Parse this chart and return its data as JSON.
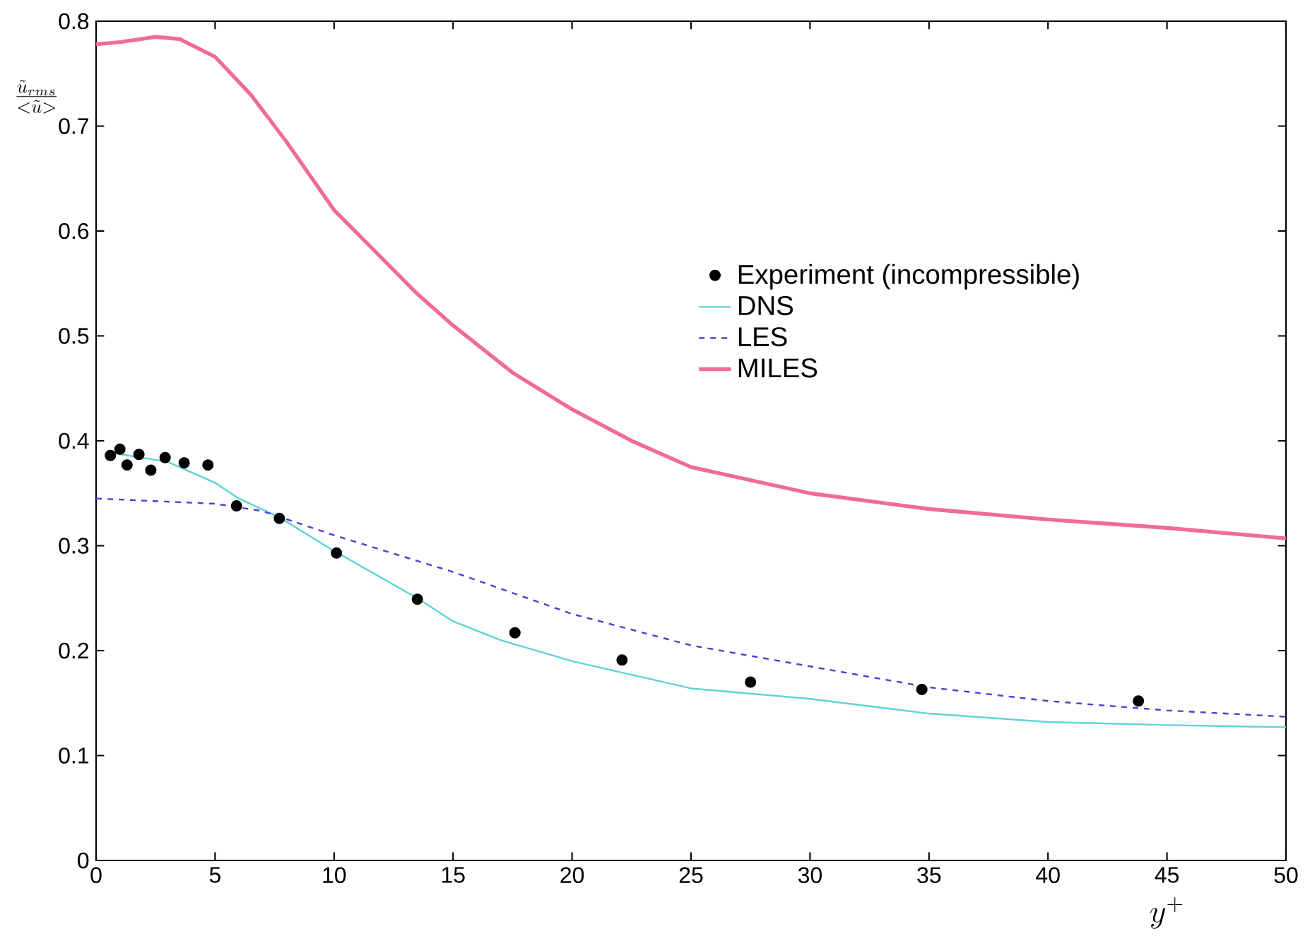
{
  "chart_data": {
    "type": "line",
    "xlabel": "y^{+}",
    "ylabel": "\\frac{\\tilde{u}_{rms}}{<\\tilde{u}>}",
    "xlim": [
      0,
      50
    ],
    "ylim": [
      0,
      0.8
    ],
    "xticks": [
      0,
      5,
      10,
      15,
      20,
      25,
      30,
      35,
      40,
      45,
      50
    ],
    "yticks": [
      0,
      0.1,
      0.2,
      0.3,
      0.4,
      0.5,
      0.6,
      0.7,
      0.8
    ],
    "legend": "right",
    "grid": false,
    "series": [
      {
        "name": "Experiment (incompressible)",
        "type": "scatter",
        "marker": "circle",
        "color": "#000000",
        "x": [
          0.6,
          1.0,
          1.3,
          1.8,
          2.3,
          2.9,
          3.7,
          4.7,
          5.9,
          7.7,
          10.1,
          13.5,
          17.6,
          22.1,
          27.5,
          34.7,
          43.8
        ],
        "values": [
          0.386,
          0.392,
          0.377,
          0.387,
          0.372,
          0.384,
          0.379,
          0.377,
          0.338,
          0.326,
          0.293,
          0.249,
          0.217,
          0.191,
          0.17,
          0.163,
          0.152
        ]
      },
      {
        "name": "DNS",
        "line_style": "solid",
        "color": "#5fd3d8",
        "x": [
          0.5,
          3,
          5,
          6,
          7.7,
          10,
          13.5,
          15,
          17,
          20,
          25,
          30,
          35,
          40,
          45,
          50
        ],
        "values": [
          0.389,
          0.38,
          0.36,
          0.345,
          0.327,
          0.295,
          0.25,
          0.228,
          0.21,
          0.19,
          0.164,
          0.154,
          0.14,
          0.132,
          0.129,
          0.127
        ]
      },
      {
        "name": "LES",
        "line_style": "dashed",
        "color": "#4a3fd0",
        "x": [
          0,
          5,
          7,
          10,
          15,
          17.5,
          20,
          25,
          30,
          35,
          40,
          45,
          50
        ],
        "values": [
          0.345,
          0.34,
          0.333,
          0.31,
          0.275,
          0.255,
          0.235,
          0.205,
          0.185,
          0.165,
          0.152,
          0.143,
          0.137
        ]
      },
      {
        "name": "MILES",
        "line_style": "solid",
        "color": "#f06a9a",
        "x": [
          0,
          1,
          2.5,
          3.5,
          5,
          6.5,
          8,
          10,
          13.5,
          15,
          17.5,
          20,
          22.5,
          25,
          30,
          35,
          40,
          45,
          50
        ],
        "values": [
          0.778,
          0.78,
          0.785,
          0.783,
          0.766,
          0.73,
          0.685,
          0.62,
          0.54,
          0.51,
          0.465,
          0.43,
          0.4,
          0.375,
          0.35,
          0.335,
          0.325,
          0.317,
          0.307
        ]
      }
    ]
  }
}
